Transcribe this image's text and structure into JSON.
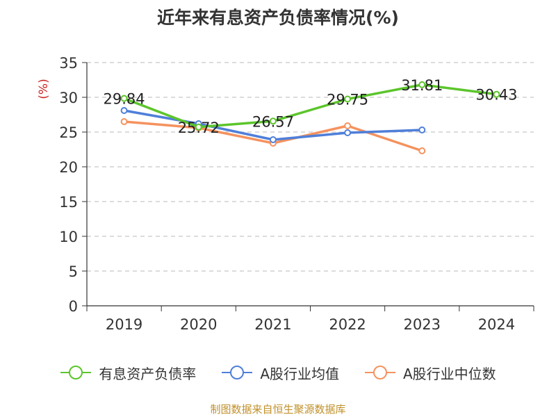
{
  "chart_data": {
    "type": "line",
    "title": "近年来有息资产负债率情况(%)",
    "ylabel": "(%)",
    "xlabel": "",
    "categories": [
      "2019",
      "2020",
      "2021",
      "2022",
      "2023",
      "2024"
    ],
    "ylim": [
      0,
      35
    ],
    "yticks": [
      0,
      5,
      10,
      15,
      20,
      25,
      30,
      35
    ],
    "grid": true,
    "legend_position": "bottom",
    "series": [
      {
        "name": "有息资产负债率",
        "color": "#5cc52b",
        "values": [
          29.84,
          25.72,
          26.57,
          29.75,
          31.81,
          30.43
        ],
        "labels": [
          "29.84",
          "25.72",
          "26.57",
          "29.75",
          "31.81",
          "30.43"
        ]
      },
      {
        "name": "A股行业均值",
        "color": "#4f7fd9",
        "values": [
          28.1,
          26.2,
          23.9,
          24.9,
          25.3,
          null
        ],
        "labels": []
      },
      {
        "name": "A股行业中位数",
        "color": "#f5925e",
        "values": [
          26.5,
          25.6,
          23.4,
          25.9,
          22.3,
          null
        ],
        "labels": []
      }
    ]
  },
  "source": "制图数据来自恒生聚源数据库"
}
